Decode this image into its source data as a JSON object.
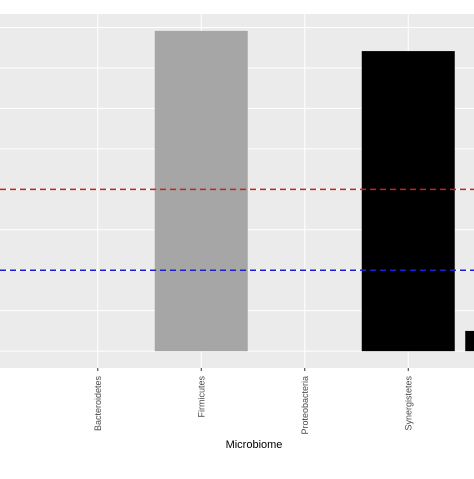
{
  "chart_data": {
    "type": "bar",
    "title": "",
    "xlabel": "Microbiome",
    "ylabel": "",
    "categories": [
      "Bacteroidetes",
      "Firmicutes",
      "Proteobacteria",
      "Synergistetes",
      ""
    ],
    "values": [
      0,
      0.95,
      0,
      0.89,
      0.06
    ],
    "bar_colors": [
      "#a6a6a6",
      "#a6a6a6",
      "#a6a6a6",
      "#000000",
      "#000000"
    ],
    "ylim": [
      -0.05,
      1.0
    ],
    "gridlines_y": [
      0,
      0.12,
      0.24,
      0.36,
      0.48,
      0.6,
      0.72,
      0.84,
      0.96
    ],
    "reference_lines": [
      {
        "value": 0.48,
        "color": "#cc1f1f",
        "style": "dashed"
      },
      {
        "value": 0.24,
        "color": "#1f1fcc",
        "style": "dashed"
      }
    ],
    "panel_background": "#ebebeb",
    "gridline_color": "#ffffff",
    "grid": true,
    "legend": "none"
  }
}
